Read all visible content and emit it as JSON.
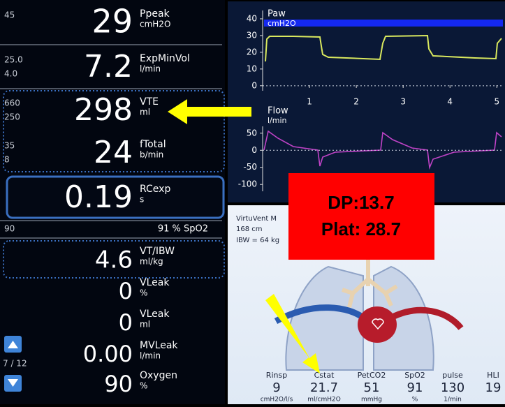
{
  "parameters": [
    {
      "limits": [
        "45"
      ],
      "value": "29",
      "name": "Ppeak",
      "unit": "cmH2O"
    },
    {
      "limits": [
        "25.0",
        "4.0"
      ],
      "value": "7.2",
      "name": "ExpMinVol",
      "unit": "l/min"
    },
    {
      "limits": [
        "660",
        "250"
      ],
      "value": "298",
      "name": "VTE",
      "unit": "ml"
    },
    {
      "limits": [
        "35",
        "8"
      ],
      "value": "24",
      "name": "fTotal",
      "unit": "b/min"
    },
    {
      "limits": [],
      "value": "0.19",
      "name": "RCexp",
      "unit": "s"
    },
    {
      "limits": [],
      "value": "4.6",
      "name": "VT/IBW",
      "unit": "ml/kg"
    },
    {
      "limits": [],
      "value": "0",
      "name": "VLeak",
      "unit": "%"
    },
    {
      "limits": [],
      "value": "0",
      "name": "VLeak",
      "unit": "ml"
    },
    {
      "limits": [],
      "value": "0.00",
      "name": "MVLeak",
      "unit": "l/min"
    },
    {
      "limits": [],
      "value": "90",
      "name": "Oxygen",
      "unit": "%"
    }
  ],
  "spo2_row": {
    "limit": "90",
    "value": "91 % SpO2"
  },
  "nav": {
    "page": "7 / 12"
  },
  "waveforms": [
    {
      "title": "Paw",
      "unit": "cmH2O",
      "ylim": [
        -3,
        45
      ],
      "yticks": [
        0,
        10,
        20,
        30,
        40
      ],
      "xlim": [
        0,
        5.1
      ],
      "xticks": [
        1,
        2,
        3,
        4,
        5
      ]
    },
    {
      "title": "Flow",
      "unit": "l/min",
      "ylim": [
        -120,
        70
      ],
      "yticks": [
        -100,
        -50,
        0,
        50
      ]
    }
  ],
  "patient": {
    "name": "VirtuVent M",
    "height": "168 cm",
    "ibw": "IBW = 64 kg"
  },
  "stats": [
    {
      "label": "Rinsp",
      "value": "9",
      "unit": "cmH2O/l/s"
    },
    {
      "label": "Cstat",
      "value": "21.7",
      "unit": "ml/cmH2O"
    },
    {
      "label": "PetCO2",
      "value": "51",
      "unit": "mmHg"
    },
    {
      "label": "SpO2",
      "value": "91",
      "unit": "%"
    },
    {
      "label": "pulse",
      "value": "130",
      "unit": "1/min"
    },
    {
      "label": "HLI",
      "value": "19",
      "unit": ""
    }
  ],
  "annotation": {
    "lines": [
      "DP:13.7",
      "Plat: 28.7"
    ]
  }
}
